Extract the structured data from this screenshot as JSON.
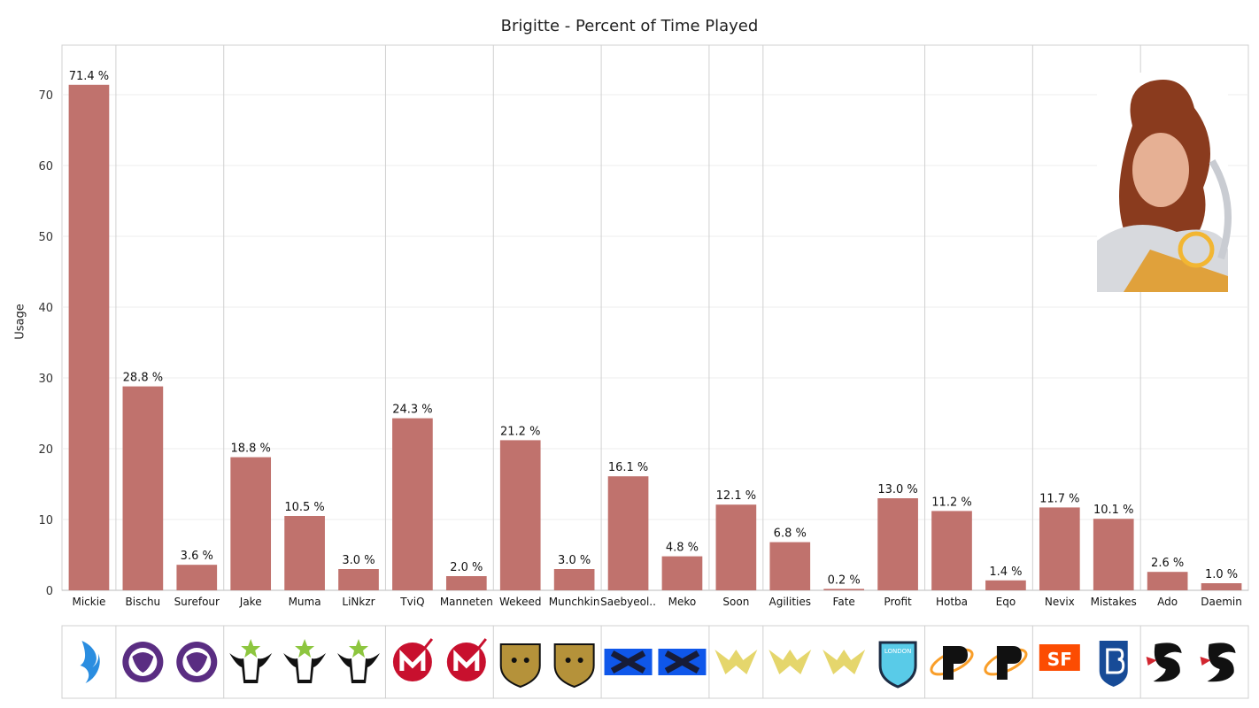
{
  "chart_data": {
    "type": "bar",
    "title": "Brigitte - Percent of Time Played",
    "ylabel": "Usage",
    "xlabel": "",
    "ylim": [
      0,
      77
    ],
    "yticks": [
      0,
      10,
      20,
      30,
      40,
      50,
      60,
      70
    ],
    "categories": [
      "Mickie",
      "Bischu",
      "Surefour",
      "Jake",
      "Muma",
      "LiNkzr",
      "TviQ",
      "Manneten",
      "Wekeed",
      "Munchkin",
      "Saebyeol..",
      "Meko",
      "Soon",
      "Agilities",
      "Fate",
      "Profit",
      "Hotba",
      "Eqo",
      "Nevix",
      "Mistakes",
      "Ado",
      "Daemin"
    ],
    "values": [
      71.4,
      28.8,
      3.6,
      18.8,
      10.5,
      3.0,
      24.3,
      2.0,
      21.2,
      3.0,
      16.1,
      4.8,
      12.1,
      6.8,
      0.2,
      13.0,
      11.2,
      1.4,
      11.7,
      10.1,
      2.6,
      1.0
    ],
    "value_labels": [
      "71.4 %",
      "28.8 %",
      "3.6 %",
      "18.8 %",
      "10.5 %",
      "3.0 %",
      "24.3 %",
      "2.0 %",
      "21.2 %",
      "3.0 %",
      "16.1 %",
      "4.8 %",
      "12.1 %",
      "6.8 %",
      "0.2 %",
      "13.0 %",
      "11.2 %",
      "1.4 %",
      "11.7 %",
      "10.1 %",
      "2.6 %",
      "1.0 %"
    ],
    "team_groups": [
      1,
      2,
      3,
      2,
      2,
      2,
      1,
      3,
      2,
      2,
      2,
      1
    ],
    "team_logos": [
      "Dallas Fuel",
      "Los Angeles Gladiators",
      "Los Angeles Gladiators",
      "Houston Outlaws",
      "Houston Outlaws",
      "Houston Outlaws",
      "Florida Mayhem",
      "Florida Mayhem",
      "Seoul Dynasty",
      "Seoul Dynasty",
      "New York Excelsior",
      "New York Excelsior",
      "Los Angeles Valiant",
      "Los Angeles Valiant",
      "Los Angeles Valiant",
      "London Spitfire",
      "Philadelphia Fusion",
      "Philadelphia Fusion",
      "San Francisco Shock",
      "Boston Uprising",
      "Shanghai Dragons",
      "Shanghai Dragons"
    ],
    "logo_text": {
      "london": "LONDON",
      "sf": "SF"
    },
    "colors": {
      "bar": "#c0726d",
      "grid": "#ececec",
      "divider": "#d0d0d0"
    },
    "grid": true,
    "legend": "none",
    "portrait": "Brigitte hero portrait (top-right)"
  }
}
